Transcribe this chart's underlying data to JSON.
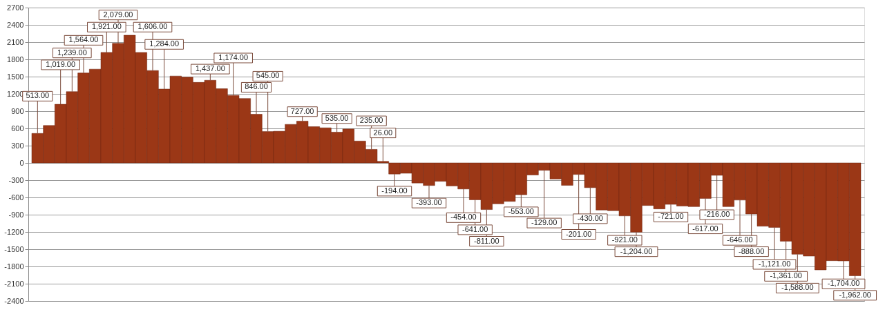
{
  "chart_data": {
    "type": "bar",
    "color": "#9b3716",
    "categories": [
      null,
      null,
      null,
      null,
      null,
      null,
      null,
      null,
      null,
      null,
      null,
      null,
      null,
      null,
      null,
      null,
      null,
      null,
      null,
      null,
      null,
      null,
      null,
      null,
      null,
      null,
      null,
      null,
      null,
      null,
      null,
      null,
      null,
      null,
      null,
      null,
      null,
      null,
      null,
      null,
      null,
      null,
      null,
      null,
      null,
      null,
      null,
      null,
      null,
      null,
      null,
      null,
      null,
      null,
      null,
      null,
      null,
      null,
      null,
      null,
      null,
      null,
      null,
      null,
      null,
      null,
      null,
      null,
      null,
      null,
      null,
      null
    ],
    "values": [
      513,
      650,
      1019,
      1239,
      1564,
      1630,
      1921,
      2079,
      2220,
      1920,
      1606,
      1284,
      1510,
      1490,
      1400,
      1437,
      1290,
      1174,
      1120,
      846,
      545,
      550,
      670,
      727,
      630,
      610,
      535,
      590,
      380,
      235,
      26,
      -194,
      -180,
      -350,
      -393,
      -320,
      -400,
      -454,
      -641,
      -811,
      -710,
      -670,
      -553,
      -210,
      -129,
      -280,
      -390,
      -201,
      -430,
      -820,
      -830,
      -921,
      -1204,
      -740,
      -800,
      -721,
      -750,
      -760,
      -617,
      -216,
      -760,
      -646,
      -888,
      -1100,
      -1121,
      -1361,
      -1588,
      -1620,
      -1860,
      -1700,
      -1704,
      -1962
    ],
    "value_labels": [
      "513.00",
      null,
      "1,019.00",
      "1,239.00",
      "1,564.00",
      null,
      "1,921.00",
      "2,079.00",
      null,
      null,
      "1,606.00",
      "1,284.00",
      null,
      null,
      null,
      "1,437.00",
      null,
      "1,174.00",
      null,
      "846.00",
      "545.00",
      null,
      null,
      "727.00",
      null,
      null,
      "535.00",
      null,
      null,
      "235.00",
      "26.00",
      "-194.00",
      null,
      null,
      "-393.00",
      null,
      null,
      "-454.00",
      "-641.00",
      "-811.00",
      null,
      null,
      "-553.00",
      null,
      "-129.00",
      null,
      null,
      "-201.00",
      "-430.00",
      null,
      null,
      "-921.00",
      "-1,204.00",
      null,
      null,
      "-721.00",
      null,
      null,
      "-617.00",
      "-216.00",
      null,
      "-646.00",
      "-888.00",
      null,
      "-1,121.00",
      "-1,361.00",
      "-1,588.00",
      null,
      null,
      null,
      "-1,704.00",
      "-1,962.00"
    ],
    "ylim": [
      -2400,
      2700
    ],
    "yticks": [
      -2400,
      -2100,
      -1800,
      -1500,
      -1200,
      -900,
      -600,
      -300,
      0,
      300,
      600,
      900,
      1200,
      1500,
      1800,
      2100,
      2400,
      2700
    ],
    "grid": "y",
    "tick_labels": "y"
  }
}
